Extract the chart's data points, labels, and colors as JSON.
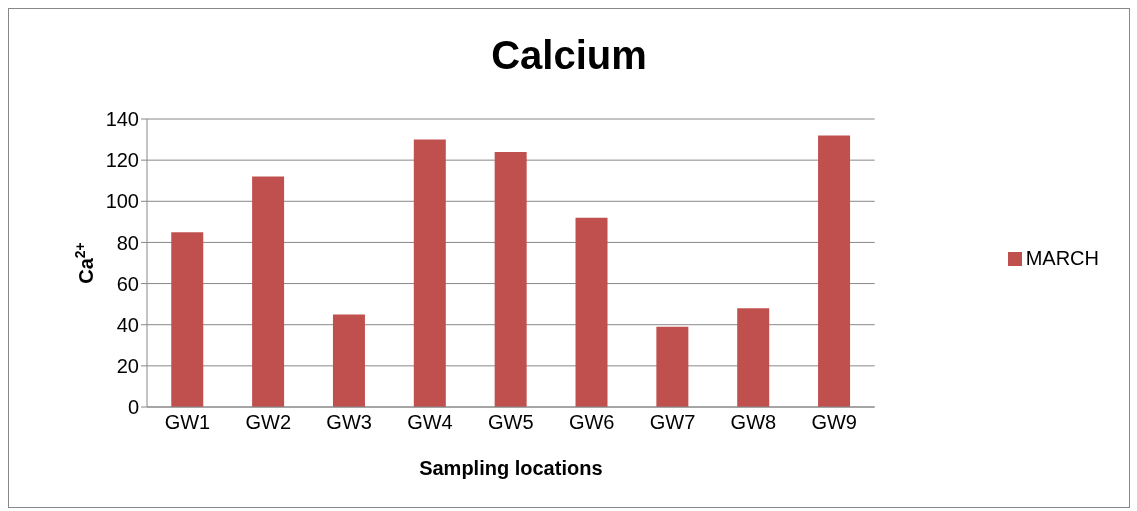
{
  "chart_data": {
    "type": "bar",
    "title": "Calcium",
    "xlabel": "Sampling locations",
    "ylabel": "Ca$^{2+}$",
    "categories": [
      "GW1",
      "GW2",
      "GW3",
      "GW4",
      "GW5",
      "GW6",
      "GW7",
      "GW8",
      "GW9"
    ],
    "series": [
      {
        "name": "MARCH",
        "color": "#c0504d",
        "values": [
          85,
          112,
          45,
          130,
          124,
          92,
          39,
          48,
          132
        ]
      }
    ],
    "ylim": [
      0,
      140
    ],
    "yticks": [
      0,
      20,
      40,
      60,
      80,
      100,
      120,
      140
    ],
    "grid": "y",
    "legend": "right"
  }
}
